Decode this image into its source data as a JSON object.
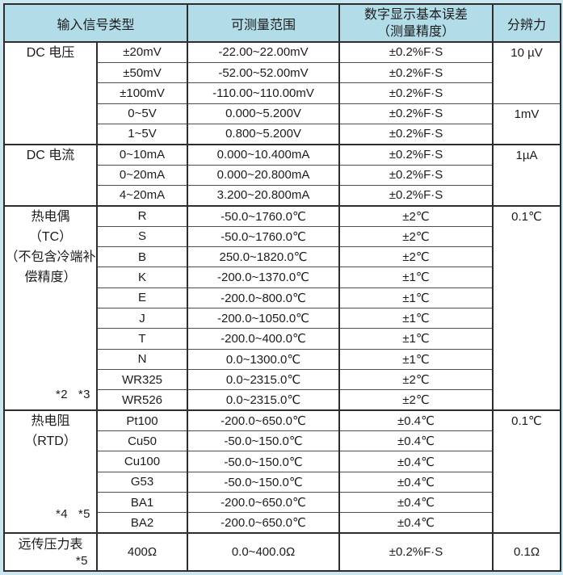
{
  "header": {
    "input_signal_type": "输入信号类型",
    "measurable_range": "可测量范围",
    "error_line1": "数字显示基本误差",
    "error_line2": "（测量精度）",
    "resolution": "分辨力"
  },
  "groups": {
    "dc_voltage": {
      "label": "DC 电压"
    },
    "dc_current": {
      "label": "DC 电流"
    },
    "thermocouple": {
      "lines": [
        "热电偶",
        "（TC）",
        "（不包含冷端补",
        "偿精度）"
      ],
      "note": "*2 *3"
    },
    "rtd": {
      "lines": [
        "热电阻",
        "（RTD）"
      ],
      "note": "*4 *5"
    },
    "pressure_gauge": {
      "label": "远传压力表",
      "note": "*5"
    }
  },
  "resolutions": {
    "dc_mv": "10 µV",
    "dc_v": "1mV",
    "dc_ma": "1µA",
    "tc": "0.1℃",
    "rtd": "0.1℃",
    "pressure": "0.1Ω"
  },
  "rows": [
    {
      "type": "±20mV",
      "range": "-22.00~22.00mV",
      "error": "±0.2%F·S"
    },
    {
      "type": "±50mV",
      "range": "-52.00~52.00mV",
      "error": "±0.2%F·S"
    },
    {
      "type": "±100mV",
      "range": "-110.00~110.00mV",
      "error": "±0.2%F·S"
    },
    {
      "type": "0~5V",
      "range": "0.000~5.200V",
      "error": "±0.2%F·S"
    },
    {
      "type": "1~5V",
      "range": "0.800~5.200V",
      "error": "±0.2%F·S"
    },
    {
      "type": "0~10mA",
      "range": "0.000~10.400mA",
      "error": "±0.2%F·S"
    },
    {
      "type": "0~20mA",
      "range": "0.000~20.800mA",
      "error": "±0.2%F·S"
    },
    {
      "type": "4~20mA",
      "range": "3.200~20.800mA",
      "error": "±0.2%F·S"
    },
    {
      "type": "R",
      "range": "-50.0~1760.0℃",
      "error": "±2℃"
    },
    {
      "type": "S",
      "range": "-50.0~1760.0℃",
      "error": "±2℃"
    },
    {
      "type": "B",
      "range": "250.0~1820.0℃",
      "error": "±2℃"
    },
    {
      "type": "K",
      "range": "-200.0~1370.0℃",
      "error": "±1℃"
    },
    {
      "type": "E",
      "range": "-200.0~800.0℃",
      "error": "±1℃"
    },
    {
      "type": "J",
      "range": "-200.0~1050.0℃",
      "error": "±1℃"
    },
    {
      "type": "T",
      "range": "-200.0~400.0℃",
      "error": "±1℃"
    },
    {
      "type": "N",
      "range": "0.0~1300.0℃",
      "error": "±1℃"
    },
    {
      "type": "WR325",
      "range": "0.0~2315.0℃",
      "error": "±2℃"
    },
    {
      "type": "WR526",
      "range": "0.0~2315.0℃",
      "error": "±2℃"
    },
    {
      "type": "Pt100",
      "range": "-200.0~650.0℃",
      "error": "±0.4℃"
    },
    {
      "type": "Cu50",
      "range": "-50.0~150.0℃",
      "error": "±0.4℃"
    },
    {
      "type": "Cu100",
      "range": "-50.0~150.0℃",
      "error": "±0.4℃"
    },
    {
      "type": "G53",
      "range": "-50.0~150.0℃",
      "error": "±0.4℃"
    },
    {
      "type": "BA1",
      "range": "-200.0~650.0℃",
      "error": "±0.4℃"
    },
    {
      "type": "BA2",
      "range": "-200.0~650.0℃",
      "error": "±0.4℃"
    },
    {
      "type": "400Ω",
      "range": "0.0~400.0Ω",
      "error": "±0.2%F·S"
    }
  ],
  "colors": {
    "header_bg": "#b2dce8",
    "frame_bg": "#c9e6f1",
    "border_dark": "#2d2d2d",
    "grid_line": "#4f4f4f",
    "text": "#1c1c1c"
  }
}
